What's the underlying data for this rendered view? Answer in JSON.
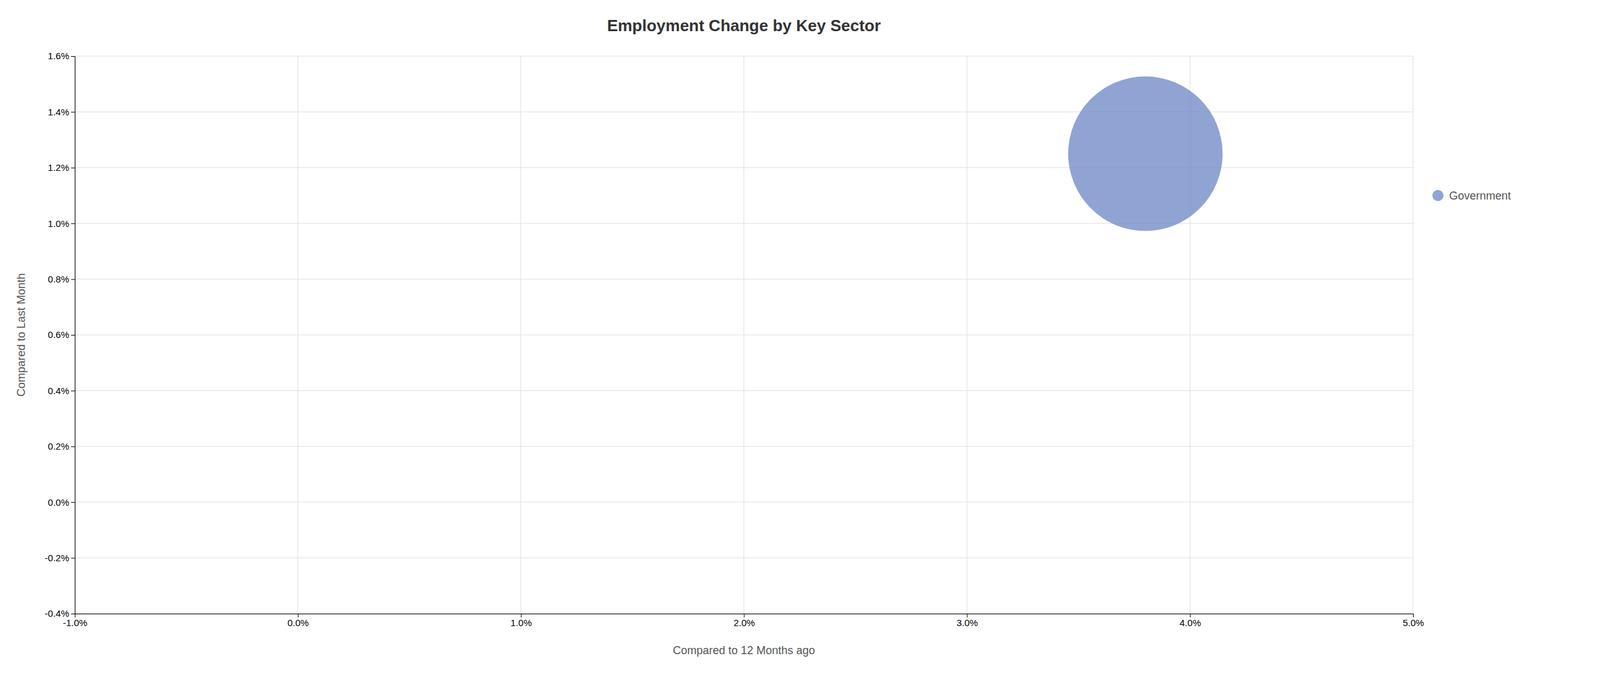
{
  "chart_data": {
    "type": "scatter",
    "title": "Employment Change by Key Sector",
    "xlabel": "Compared to 12 Months ago",
    "ylabel": "Compared to Last Month",
    "xlim": [
      -0.01,
      0.05
    ],
    "ylim": [
      -0.004,
      0.016
    ],
    "xticks": [
      {
        "value": -0.01,
        "label": "-1.0%"
      },
      {
        "value": 0.0,
        "label": "0.0%"
      },
      {
        "value": 0.01,
        "label": "1.0%"
      },
      {
        "value": 0.02,
        "label": "2.0%"
      },
      {
        "value": 0.03,
        "label": "3.0%"
      },
      {
        "value": 0.04,
        "label": "4.0%"
      },
      {
        "value": 0.05,
        "label": "5.0%"
      }
    ],
    "yticks": [
      {
        "value": -0.004,
        "label": "-0.4%"
      },
      {
        "value": -0.002,
        "label": "-0.2%"
      },
      {
        "value": 0.0,
        "label": "0.0%"
      },
      {
        "value": 0.002,
        "label": "0.2%"
      },
      {
        "value": 0.004,
        "label": "0.4%"
      },
      {
        "value": 0.006,
        "label": "0.6%"
      },
      {
        "value": 0.008,
        "label": "0.8%"
      },
      {
        "value": 0.01,
        "label": "1.0%"
      },
      {
        "value": 0.012,
        "label": "1.2%"
      },
      {
        "value": 0.014,
        "label": "1.4%"
      },
      {
        "value": 0.016,
        "label": "1.6%"
      }
    ],
    "series": [
      {
        "name": "Government",
        "color": "#6b86c4",
        "x": [
          0.038
        ],
        "values": [
          0.0125
        ],
        "size": [
          25000
        ]
      }
    ],
    "grid": true,
    "legend": "right"
  }
}
